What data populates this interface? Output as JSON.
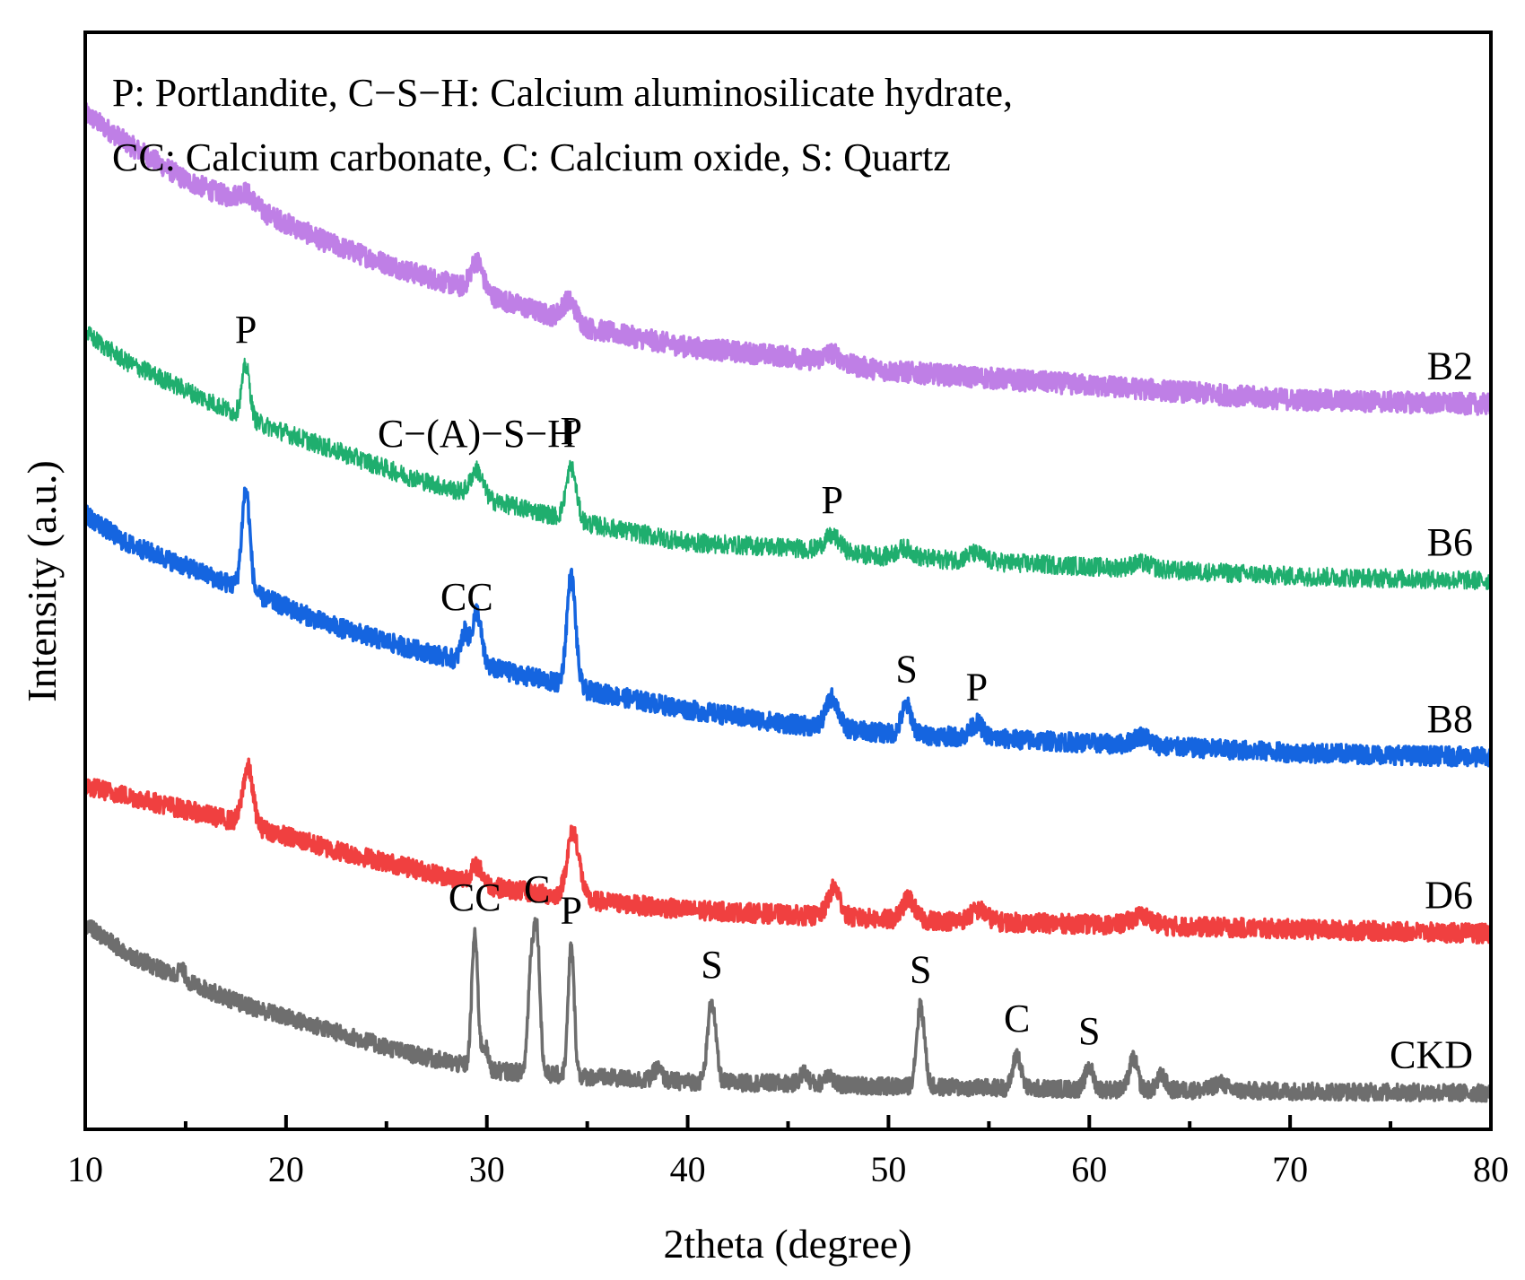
{
  "chart_data": {
    "type": "line",
    "title": "",
    "xlabel": "2theta (degree)",
    "ylabel": "Intensity (a.u.)",
    "xlim": [
      10,
      80
    ],
    "xticks": [
      10,
      20,
      30,
      40,
      50,
      60,
      70,
      80
    ],
    "yticks_shown": false,
    "grid": false,
    "legend_text": [
      "P: Portlandite, C−S−H: Calcium aluminosilicate hydrate,",
      "CC: Calcium carbonate, C: Calcium oxide, S: Quartz"
    ],
    "legend_position": "top-left",
    "series": [
      {
        "name": "B2",
        "color": "#bf7fe6",
        "background": [
          [
            10,
            103.5
          ],
          [
            12,
            100.5
          ],
          [
            15,
            96.5
          ],
          [
            18,
            94.0
          ],
          [
            22,
            90.0
          ],
          [
            26,
            87.0
          ],
          [
            30,
            84.5
          ],
          [
            35,
            81.0
          ],
          [
            40,
            79.0
          ],
          [
            45,
            78.0
          ],
          [
            50,
            76.5
          ],
          [
            60,
            75.0
          ],
          [
            70,
            73.5
          ],
          [
            80,
            73.0
          ]
        ],
        "peaks": [
          [
            18.0,
            1.2,
            0.4
          ],
          [
            29.5,
            3.2,
            0.3
          ],
          [
            34.1,
            2.2,
            0.35
          ],
          [
            47.2,
            1.0,
            0.4
          ]
        ]
      },
      {
        "name": "B6",
        "color": "#1fae6e",
        "background": [
          [
            10,
            80.5
          ],
          [
            12,
            77.5
          ],
          [
            15,
            74.5
          ],
          [
            18,
            71.5
          ],
          [
            22,
            68.5
          ],
          [
            26,
            65.5
          ],
          [
            30,
            63.0
          ],
          [
            35,
            60.5
          ],
          [
            40,
            58.5
          ],
          [
            45,
            58.0
          ],
          [
            50,
            57.0
          ],
          [
            60,
            56.0
          ],
          [
            70,
            55.0
          ],
          [
            80,
            54.5
          ]
        ],
        "peaks": [
          [
            18.0,
            5.5,
            0.2
          ],
          [
            29.5,
            2.8,
            0.3
          ],
          [
            34.2,
            5.5,
            0.25
          ],
          [
            47.2,
            1.6,
            0.4
          ],
          [
            50.8,
            1.0,
            0.4
          ],
          [
            54.3,
            0.8,
            0.4
          ],
          [
            62.6,
            0.6,
            0.5
          ]
        ]
      },
      {
        "name": "B8",
        "color": "#1565e0",
        "background": [
          [
            10,
            61.5
          ],
          [
            12,
            58.5
          ],
          [
            15,
            56.0
          ],
          [
            18,
            53.5
          ],
          [
            22,
            50.0
          ],
          [
            26,
            47.5
          ],
          [
            30,
            45.5
          ],
          [
            35,
            43.0
          ],
          [
            40,
            41.0
          ],
          [
            45,
            39.5
          ],
          [
            50,
            38.5
          ],
          [
            60,
            37.5
          ],
          [
            70,
            36.5
          ],
          [
            80,
            36.0
          ]
        ],
        "peaks": [
          [
            18.0,
            10.5,
            0.2
          ],
          [
            28.9,
            3.0,
            0.18
          ],
          [
            29.5,
            5.5,
            0.22
          ],
          [
            34.2,
            11.5,
            0.22
          ],
          [
            47.2,
            3.2,
            0.3
          ],
          [
            50.9,
            3.0,
            0.25
          ],
          [
            54.4,
            1.5,
            0.3
          ],
          [
            62.6,
            1.0,
            0.4
          ]
        ]
      },
      {
        "name": "D6",
        "color": "#f04040",
        "background": [
          [
            10,
            33.0
          ],
          [
            12,
            32.0
          ],
          [
            15,
            30.5
          ],
          [
            18,
            29.0
          ],
          [
            22,
            26.5
          ],
          [
            26,
            24.5
          ],
          [
            30,
            22.5
          ],
          [
            35,
            21.0
          ],
          [
            40,
            20.0
          ],
          [
            45,
            19.5
          ],
          [
            50,
            19.0
          ],
          [
            60,
            18.5
          ],
          [
            70,
            18.0
          ],
          [
            80,
            17.5
          ]
        ],
        "peaks": [
          [
            18.1,
            6.0,
            0.25
          ],
          [
            29.5,
            1.8,
            0.3
          ],
          [
            34.3,
            7.0,
            0.3
          ],
          [
            47.3,
            3.0,
            0.3
          ],
          [
            51.0,
            2.2,
            0.3
          ],
          [
            54.5,
            1.2,
            0.4
          ],
          [
            62.6,
            1.0,
            0.5
          ]
        ]
      },
      {
        "name": "CKD",
        "color": "#6e6e6e",
        "background": [
          [
            10,
            18.5
          ],
          [
            12,
            15.5
          ],
          [
            15,
            12.5
          ],
          [
            18,
            10.0
          ],
          [
            22,
            7.5
          ],
          [
            26,
            5.0
          ],
          [
            30,
            3.2
          ],
          [
            35,
            2.5
          ],
          [
            40,
            2.0
          ],
          [
            45,
            1.8
          ],
          [
            50,
            1.5
          ],
          [
            60,
            1.2
          ],
          [
            70,
            1.0
          ],
          [
            80,
            0.8
          ]
        ],
        "peaks": [
          [
            14.8,
            1.0,
            0.2
          ],
          [
            29.4,
            14.0,
            0.15
          ],
          [
            29.9,
            2.5,
            0.15
          ],
          [
            32.2,
            11.0,
            0.15
          ],
          [
            32.5,
            14.0,
            0.15
          ],
          [
            34.2,
            13.5,
            0.15
          ],
          [
            38.5,
            1.2,
            0.2
          ],
          [
            41.2,
            8.5,
            0.2
          ],
          [
            45.8,
            1.2,
            0.2
          ],
          [
            47.0,
            1.2,
            0.2
          ],
          [
            51.6,
            8.5,
            0.2
          ],
          [
            56.4,
            3.5,
            0.2
          ],
          [
            60.0,
            2.3,
            0.2
          ],
          [
            62.2,
            3.3,
            0.2
          ],
          [
            63.6,
            1.5,
            0.2
          ],
          [
            66.5,
            0.8,
            0.3
          ]
        ]
      }
    ],
    "peak_annotations": [
      {
        "text": "P",
        "series": "B6",
        "x": 18.0
      },
      {
        "text": "C−(A)−S−H",
        "series": "B6",
        "x": 29.5
      },
      {
        "text": "P",
        "series": "B6",
        "x": 34.2
      },
      {
        "text": "P",
        "series": "B6",
        "x": 47.2
      },
      {
        "text": "CC",
        "series": "B8",
        "x": 29.0
      },
      {
        "text": "S",
        "series": "B8",
        "x": 50.9
      },
      {
        "text": "P",
        "series": "B8",
        "x": 54.4
      },
      {
        "text": "CC",
        "series": "CKD",
        "x": 29.4
      },
      {
        "text": "C",
        "series": "CKD",
        "x": 32.5
      },
      {
        "text": "P",
        "series": "CKD",
        "x": 34.2
      },
      {
        "text": "S",
        "series": "CKD",
        "x": 41.2
      },
      {
        "text": "S",
        "series": "CKD",
        "x": 51.6
      },
      {
        "text": "C",
        "series": "CKD",
        "x": 56.4
      },
      {
        "text": "S",
        "series": "CKD",
        "x": 60.0
      }
    ]
  }
}
